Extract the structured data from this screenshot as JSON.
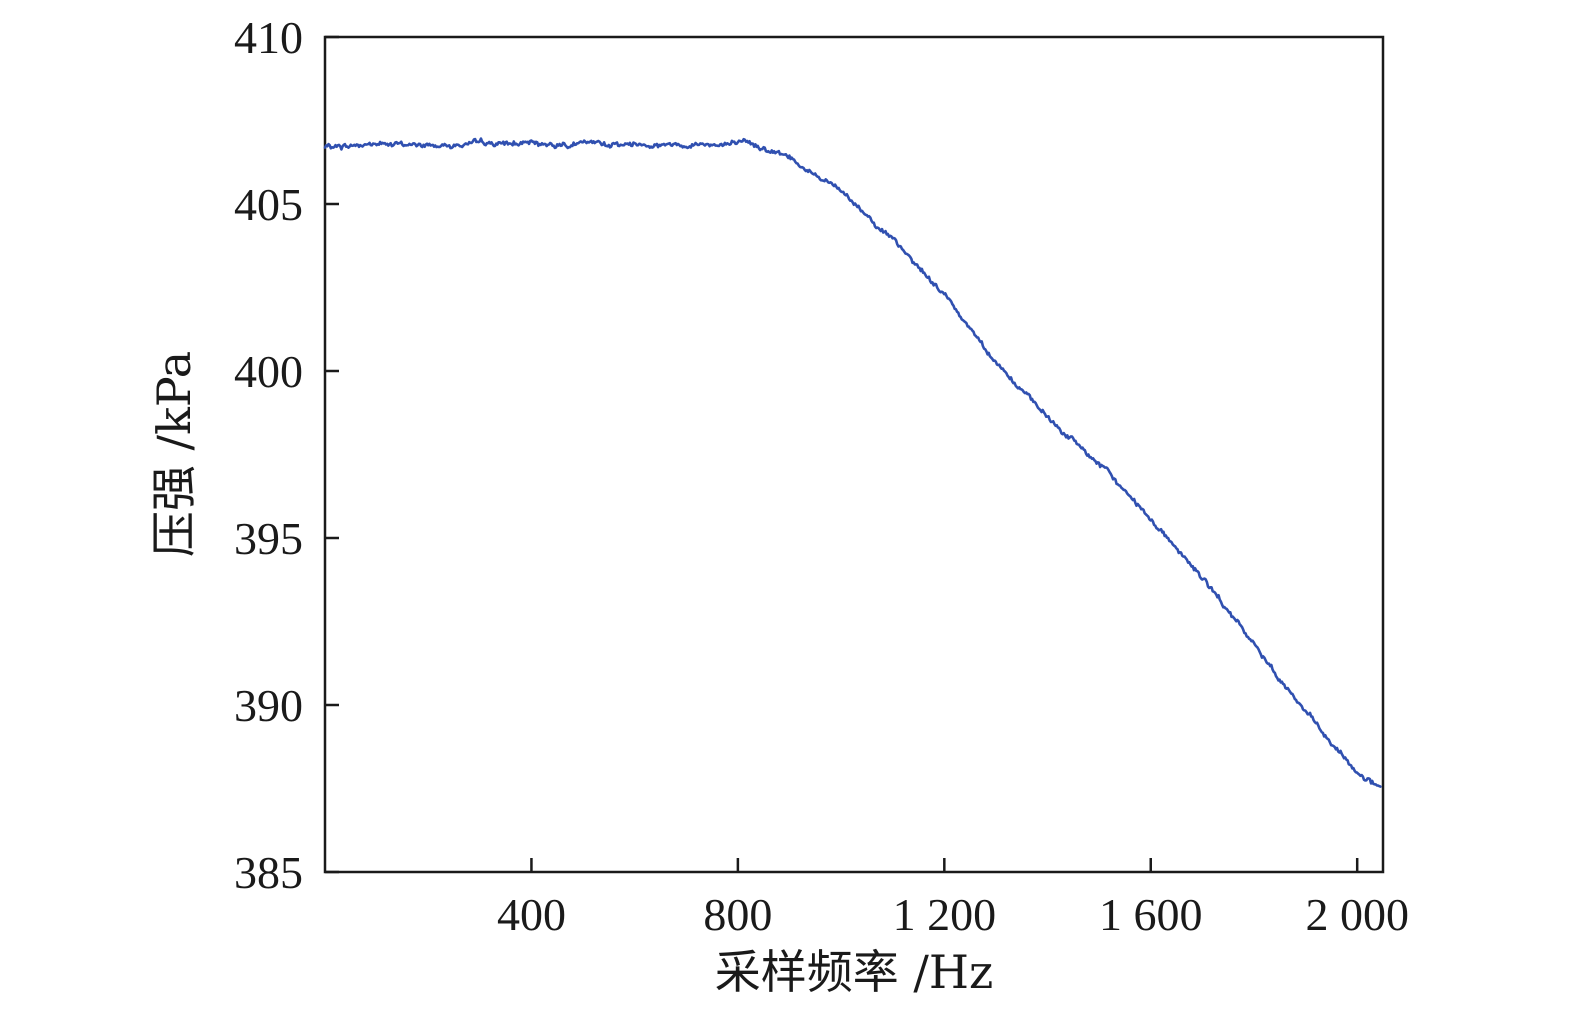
{
  "chart_data": {
    "type": "line",
    "title": "",
    "xlabel": "采样频率 /Hz",
    "ylabel": "压强 /kPa",
    "xlim": [
      0,
      2050
    ],
    "ylim": [
      385,
      410
    ],
    "x_ticks": [
      400,
      800,
      1200,
      1600,
      2000
    ],
    "x_tick_labels": [
      "400",
      "800",
      "1 200",
      "1 600",
      "2 000"
    ],
    "y_ticks": [
      385,
      390,
      395,
      400,
      405,
      410
    ],
    "y_tick_labels": [
      "385",
      "390",
      "395",
      "400",
      "405",
      "410"
    ],
    "grid": false,
    "legend": "none",
    "series": [
      {
        "color": "#3050b0",
        "x": [
          0,
          100,
          200,
          300,
          400,
          500,
          600,
          700,
          800,
          850,
          900,
          950,
          1000,
          1050,
          1100,
          1150,
          1200,
          1250,
          1300,
          1350,
          1400,
          1450,
          1500,
          1550,
          1600,
          1650,
          1700,
          1750,
          1800,
          1850,
          1900,
          1950,
          2000,
          2045
        ],
        "y": [
          406.7,
          406.8,
          406.75,
          406.8,
          406.8,
          406.8,
          406.8,
          406.8,
          406.8,
          406.7,
          406.4,
          405.9,
          405.4,
          404.7,
          403.9,
          403.1,
          402.3,
          401.3,
          400.3,
          399.4,
          398.6,
          397.9,
          397.2,
          396.4,
          395.6,
          394.7,
          393.8,
          392.8,
          391.8,
          390.8,
          389.8,
          388.8,
          388.0,
          387.5
        ]
      }
    ]
  }
}
